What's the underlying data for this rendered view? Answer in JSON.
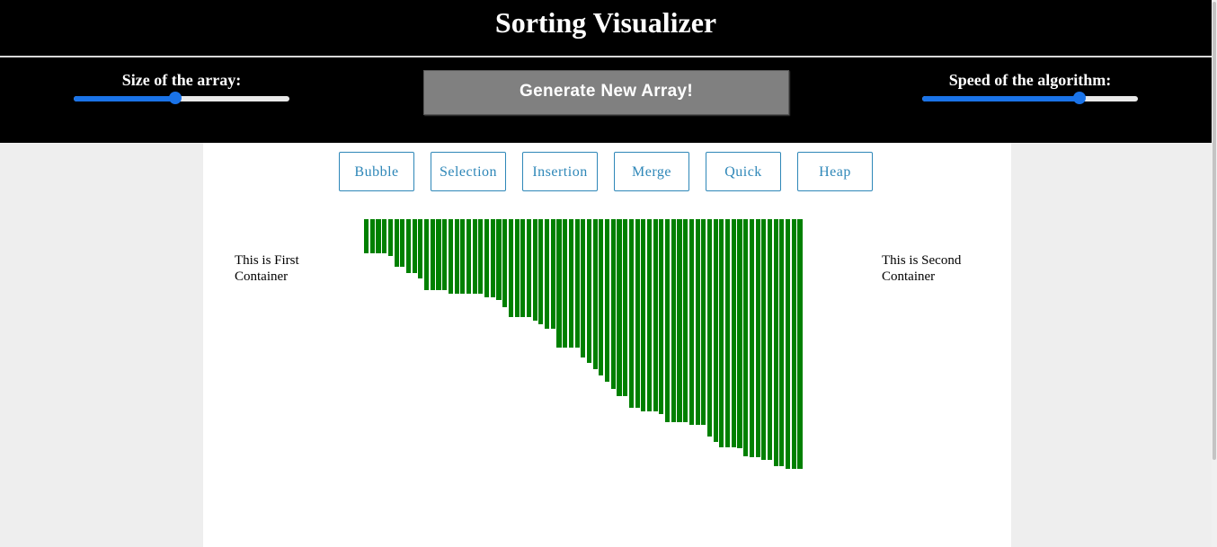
{
  "header": {
    "title": "Sorting Visualizer"
  },
  "controls": {
    "size_label": "Size of the array:",
    "size_value_pct": 47,
    "generate_label": "Generate New Array!",
    "speed_label": "Speed of the algorithm:",
    "speed_value_pct": 73
  },
  "algorithms": [
    "Bubble",
    "Selection",
    "Insertion",
    "Merge",
    "Quick",
    "Heap"
  ],
  "containers": {
    "first": "This is First Container",
    "second": "This is Second Container"
  },
  "array": {
    "bar_color": "#008000",
    "values": [
      38,
      38,
      38,
      38,
      41,
      53,
      53,
      60,
      60,
      66,
      79,
      79,
      79,
      79,
      83,
      83,
      83,
      83,
      83,
      83,
      87,
      87,
      90,
      98,
      109,
      109,
      109,
      109,
      113,
      117,
      122,
      122,
      143,
      143,
      143,
      143,
      154,
      160,
      167,
      174,
      181,
      189,
      197,
      197,
      210,
      210,
      214,
      214,
      214,
      217,
      226,
      226,
      226,
      226,
      229,
      229,
      229,
      242,
      248,
      254,
      254,
      254,
      255,
      264,
      265,
      265,
      268,
      268,
      275,
      275,
      278,
      278,
      278
    ]
  }
}
